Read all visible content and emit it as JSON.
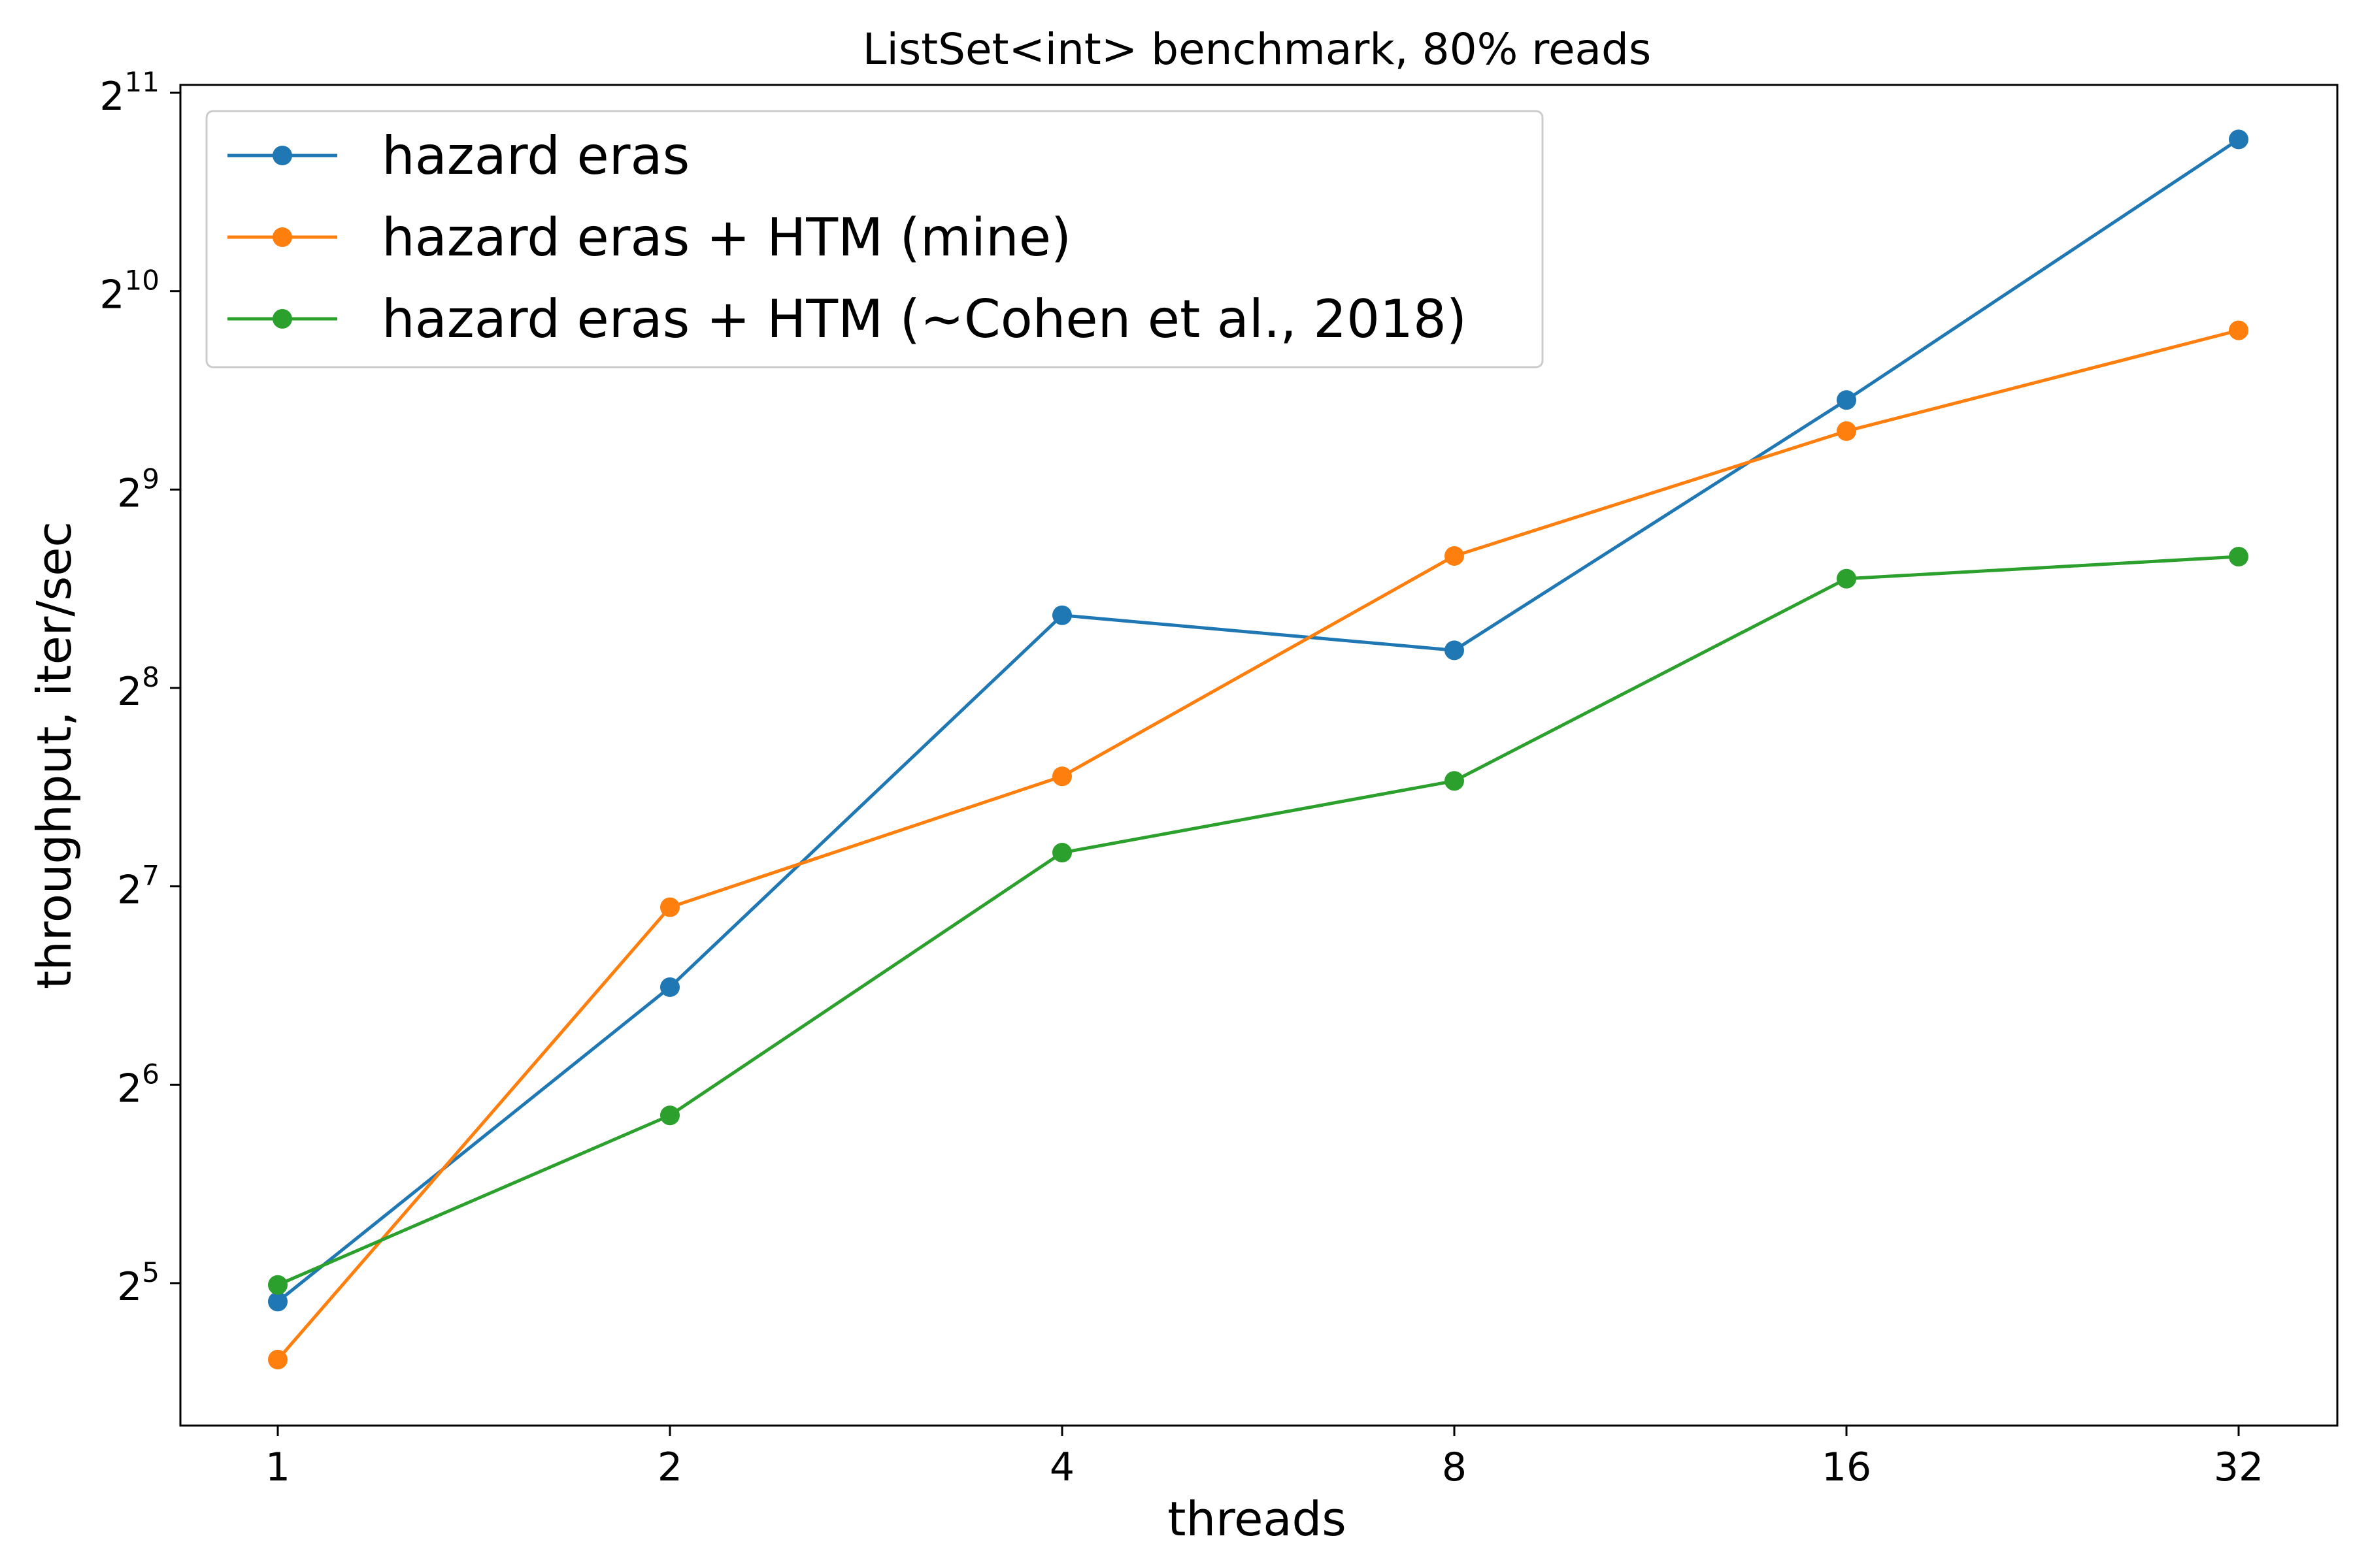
{
  "chart_data": {
    "type": "line",
    "title": "ListSet<int> benchmark, 80% reads",
    "xlabel": "threads",
    "ylabel": "throughput, iter/sec",
    "x": [
      1,
      2,
      4,
      8,
      16,
      32
    ],
    "x_tick_labels": [
      "1",
      "2",
      "4",
      "8",
      "16",
      "32"
    ],
    "x_scale": "log2",
    "y_scale": "log2",
    "y_ticks": [
      {
        "base": "2",
        "exp": "5",
        "value": 32
      },
      {
        "base": "2",
        "exp": "6",
        "value": 64
      },
      {
        "base": "2",
        "exp": "7",
        "value": 128
      },
      {
        "base": "2",
        "exp": "8",
        "value": 256
      },
      {
        "base": "2",
        "exp": "9",
        "value": 512
      },
      {
        "base": "2",
        "exp": "10",
        "value": 1024
      },
      {
        "base": "2",
        "exp": "11",
        "value": 2048
      }
    ],
    "ylim": [
      24,
      2048
    ],
    "grid": false,
    "legend_position": "upper-left",
    "series": [
      {
        "name": "hazard eras",
        "color": "#1f77b4",
        "values": [
          30,
          90,
          330,
          292,
          700,
          1740
        ]
      },
      {
        "name": "hazard eras + HTM (mine)",
        "color": "#ff7f0e",
        "values": [
          24.5,
          119,
          188,
          406,
          628,
          893
        ]
      },
      {
        "name": "hazard eras + HTM (~Cohen et al., 2018)",
        "color": "#2ca02c",
        "values": [
          31.8,
          57.5,
          144,
          185,
          375,
          405
        ]
      }
    ]
  }
}
